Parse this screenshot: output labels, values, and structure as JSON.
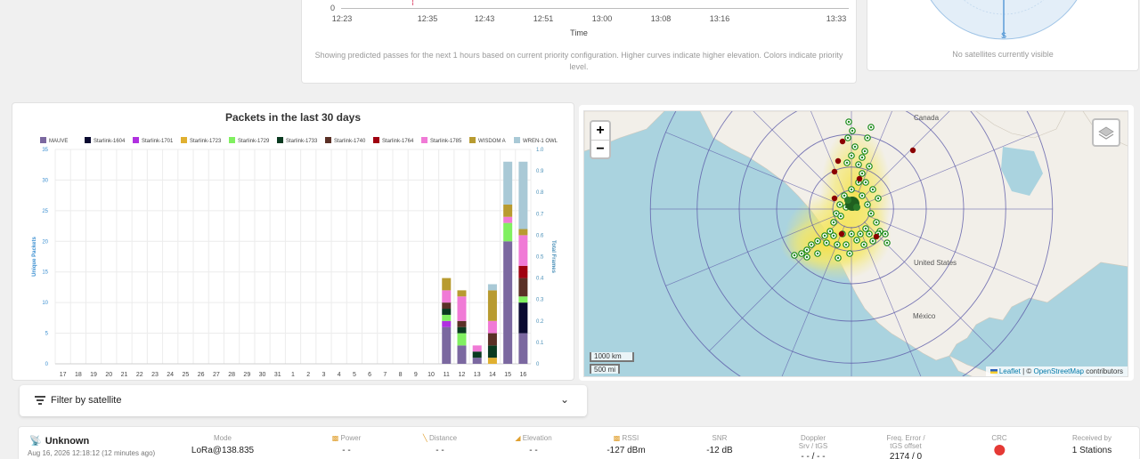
{
  "pass_chart": {
    "zero_label": "0",
    "time_ticks": [
      "12:23",
      "12:35",
      "12:43",
      "12:51",
      "13:00",
      "13:08",
      "13:16",
      "13:33"
    ],
    "axis_label": "Time",
    "caption": "Showing predicted passes for the next 1 hours based on current priority configuration. Higher curves indicate higher elevation. Colors indicate priority level."
  },
  "polar": {
    "south_label": "S",
    "caption": "No satellites currently visible"
  },
  "chart_data": {
    "type": "bar",
    "title": "Packets in the last 30 days",
    "ylabel": "Unique Packets",
    "y2label": "Total Frames",
    "ylim": [
      0,
      35
    ],
    "y_ticks": [
      "0",
      "5",
      "10",
      "15",
      "20",
      "25",
      "30",
      "35"
    ],
    "y2lim": [
      0,
      1.0
    ],
    "y2_ticks": [
      "0",
      "0.1",
      "0.2",
      "0.3",
      "0.4",
      "0.5",
      "0.6",
      "0.7",
      "0.8",
      "0.9",
      "1.0"
    ],
    "categories": [
      "17",
      "18",
      "19",
      "20",
      "21",
      "22",
      "23",
      "24",
      "25",
      "26",
      "27",
      "28",
      "29",
      "30",
      "31",
      "1",
      "2",
      "3",
      "4",
      "5",
      "6",
      "7",
      "8",
      "9",
      "10",
      "11",
      "12",
      "13",
      "14",
      "15",
      "16"
    ],
    "legend_position": "top",
    "stacked": true,
    "series": [
      {
        "name": "MAUVE",
        "color": "#7b68a0",
        "values": [
          0,
          0,
          0,
          0,
          0,
          0,
          0,
          0,
          0,
          0,
          0,
          0,
          0,
          0,
          0,
          0,
          0,
          0,
          0,
          0,
          0,
          0,
          0,
          0,
          0,
          6,
          3,
          1,
          0,
          20,
          5
        ]
      },
      {
        "name": "Starlink-1604",
        "color": "#0a0a30",
        "values": [
          0,
          0,
          0,
          0,
          0,
          0,
          0,
          0,
          0,
          0,
          0,
          0,
          0,
          0,
          0,
          0,
          0,
          0,
          0,
          0,
          0,
          0,
          0,
          0,
          0,
          0,
          0,
          0,
          0,
          0,
          5
        ]
      },
      {
        "name": "Starlink-1701",
        "color": "#b030e0",
        "values": [
          0,
          0,
          0,
          0,
          0,
          0,
          0,
          0,
          0,
          0,
          0,
          0,
          0,
          0,
          0,
          0,
          0,
          0,
          0,
          0,
          0,
          0,
          0,
          0,
          0,
          1,
          0,
          0,
          0,
          0,
          0
        ]
      },
      {
        "name": "Starlink-1723",
        "color": "#e0b030",
        "values": [
          0,
          0,
          0,
          0,
          0,
          0,
          0,
          0,
          0,
          0,
          0,
          0,
          0,
          0,
          0,
          0,
          0,
          0,
          0,
          0,
          0,
          0,
          0,
          0,
          0,
          0,
          0,
          0,
          1,
          0,
          0
        ]
      },
      {
        "name": "Starlink-1729",
        "color": "#80f060",
        "values": [
          0,
          0,
          0,
          0,
          0,
          0,
          0,
          0,
          0,
          0,
          0,
          0,
          0,
          0,
          0,
          0,
          0,
          0,
          0,
          0,
          0,
          0,
          0,
          0,
          0,
          1,
          2,
          0,
          0,
          3,
          1
        ]
      },
      {
        "name": "Starlink-1733",
        "color": "#0a3a20",
        "values": [
          0,
          0,
          0,
          0,
          0,
          0,
          0,
          0,
          0,
          0,
          0,
          0,
          0,
          0,
          0,
          0,
          0,
          0,
          0,
          0,
          0,
          0,
          0,
          0,
          0,
          1,
          1,
          1,
          2,
          0,
          0
        ]
      },
      {
        "name": "Starlink-1740",
        "color": "#5a3026",
        "values": [
          0,
          0,
          0,
          0,
          0,
          0,
          0,
          0,
          0,
          0,
          0,
          0,
          0,
          0,
          0,
          0,
          0,
          0,
          0,
          0,
          0,
          0,
          0,
          0,
          0,
          1,
          1,
          0,
          2,
          0,
          3
        ]
      },
      {
        "name": "Starlink-1764",
        "color": "#a00010",
        "values": [
          0,
          0,
          0,
          0,
          0,
          0,
          0,
          0,
          0,
          0,
          0,
          0,
          0,
          0,
          0,
          0,
          0,
          0,
          0,
          0,
          0,
          0,
          0,
          0,
          0,
          0,
          0,
          0,
          0,
          0,
          2
        ]
      },
      {
        "name": "Starlink-1785",
        "color": "#f07ad6",
        "values": [
          0,
          0,
          0,
          0,
          0,
          0,
          0,
          0,
          0,
          0,
          0,
          0,
          0,
          0,
          0,
          0,
          0,
          0,
          0,
          0,
          0,
          0,
          0,
          0,
          0,
          2,
          4,
          1,
          2,
          1,
          5
        ]
      },
      {
        "name": "WISDOM A",
        "color": "#b89b30",
        "values": [
          0,
          0,
          0,
          0,
          0,
          0,
          0,
          0,
          0,
          0,
          0,
          0,
          0,
          0,
          0,
          0,
          0,
          0,
          0,
          0,
          0,
          0,
          0,
          0,
          0,
          2,
          1,
          0,
          5,
          2,
          1
        ]
      },
      {
        "name": "WREN-1 OWL",
        "color": "#a9c9d6",
        "values": [
          0,
          0,
          0,
          0,
          0,
          0,
          0,
          0,
          0,
          0,
          0,
          0,
          0,
          0,
          0,
          0,
          0,
          0,
          0,
          0,
          0,
          0,
          0,
          0,
          0,
          0,
          0,
          0,
          1,
          7,
          11
        ]
      }
    ]
  },
  "map": {
    "zoom_in": "+",
    "zoom_out": "−",
    "labels": {
      "canada": "Canada",
      "usa": "United States",
      "mexico": "México"
    },
    "scale_km": "1000 km",
    "scale_mi": "500 mi",
    "attribution": {
      "leaflet": "Leaflet",
      "separator": " | © ",
      "osm": "OpenStreetMap",
      "suffix": " contributors"
    },
    "receiver_color": "#1a8a1a",
    "packet_color": "#8b0000",
    "grid_color": "#5b5aa8"
  },
  "filter": {
    "label": "Filter by satellite"
  },
  "packet": {
    "name": "Unknown",
    "date": "Aug 16, 2026 12:18:12 (12 minutes ago)",
    "columns": [
      {
        "label": "Mode",
        "value": "LoRa@138.835"
      },
      {
        "label": "Power",
        "value": "- -"
      },
      {
        "label": "Distance",
        "value": "- -"
      },
      {
        "label": "Elevation",
        "value": "- -"
      },
      {
        "label": "RSSI",
        "value": "-127 dBm"
      },
      {
        "label": "SNR",
        "value": "-12 dB"
      },
      {
        "label": "Doppler",
        "label2": "Srv / tGS",
        "value": "- - / - -"
      },
      {
        "label": "Freq. Error /",
        "label2": "tGS offset",
        "value": "2174 / 0"
      },
      {
        "label": "CRC",
        "value": ""
      },
      {
        "label": "Received by",
        "value": "1 Stations"
      }
    ]
  }
}
